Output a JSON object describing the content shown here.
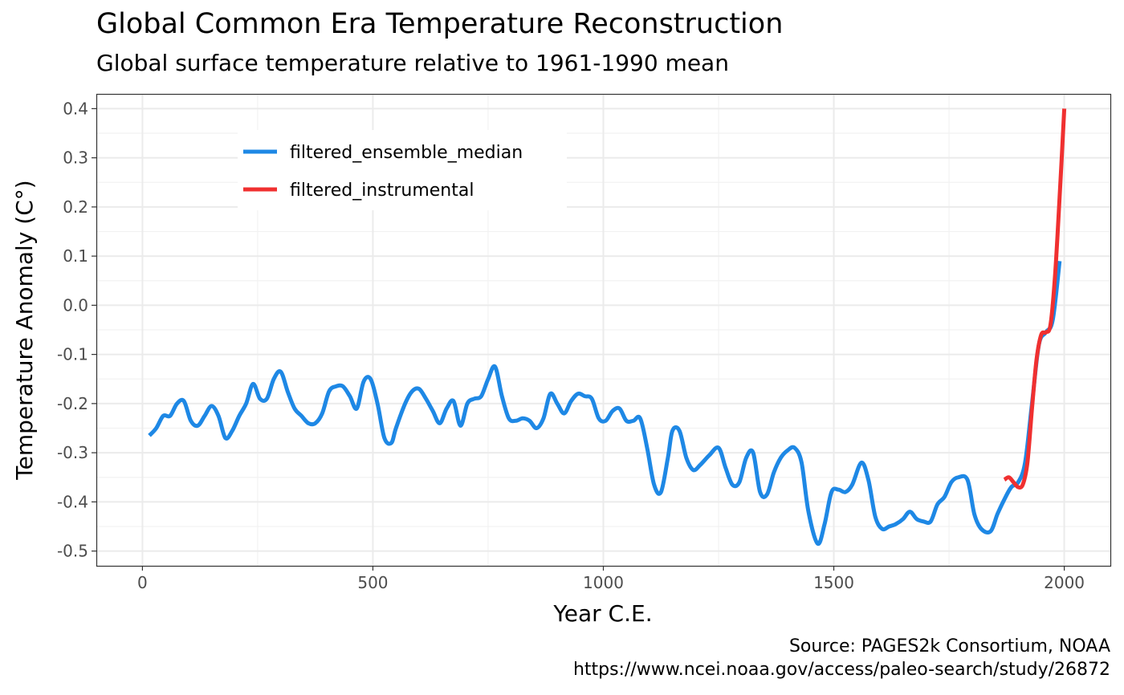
{
  "chart_data": {
    "type": "line",
    "title": "Global Common Era Temperature Reconstruction",
    "subtitle": "Global surface temperature relative to 1961-1990 mean",
    "xlabel": "Year C.E.",
    "ylabel": "Temperature Anomaly (C°)",
    "caption_line1": "Source: PAGES2k Consortium, NOAA",
    "caption_line2": "https://www.ncei.noaa.gov/access/paleo-search/study/26872",
    "xlim": [
      -100,
      2100
    ],
    "ylim": [
      -0.53,
      0.43
    ],
    "x_ticks": [
      0,
      500,
      1000,
      1500,
      2000
    ],
    "y_ticks": [
      0.4,
      0.3,
      0.2,
      0.1,
      0.0,
      -0.1,
      -0.2,
      -0.3,
      -0.4,
      -0.5
    ],
    "x_tick_labels": [
      "0",
      "500",
      "1000",
      "1500",
      "2000"
    ],
    "y_tick_labels": [
      "0.4",
      "0.3",
      "0.2",
      "0.1",
      "0.0",
      "-0.1",
      "-0.2",
      "-0.3",
      "-0.4",
      "-0.5"
    ],
    "grid": true,
    "legend_position": "top-left",
    "series": [
      {
        "name": "filtered_ensemble_median",
        "color": "#1e88e5",
        "x": [
          15,
          30,
          45,
          60,
          75,
          90,
          105,
          120,
          135,
          150,
          165,
          180,
          195,
          210,
          225,
          240,
          255,
          270,
          285,
          300,
          315,
          330,
          345,
          360,
          375,
          390,
          405,
          420,
          435,
          450,
          465,
          480,
          495,
          510,
          525,
          540,
          550,
          570,
          585,
          600,
          615,
          630,
          645,
          660,
          675,
          690,
          705,
          720,
          735,
          750,
          765,
          780,
          795,
          810,
          825,
          840,
          855,
          870,
          885,
          900,
          915,
          930,
          945,
          960,
          975,
          990,
          1005,
          1020,
          1035,
          1050,
          1065,
          1080,
          1095,
          1110,
          1125,
          1140,
          1150,
          1165,
          1180,
          1195,
          1210,
          1230,
          1250,
          1265,
          1280,
          1295,
          1310,
          1325,
          1340,
          1355,
          1370,
          1385,
          1400,
          1415,
          1430,
          1445,
          1465,
          1480,
          1495,
          1510,
          1525,
          1540,
          1560,
          1575,
          1590,
          1605,
          1620,
          1635,
          1650,
          1665,
          1680,
          1695,
          1710,
          1725,
          1740,
          1755,
          1770,
          1790,
          1805,
          1820,
          1840,
          1855,
          1870,
          1885,
          1900,
          1915,
          1930,
          1945,
          1960,
          1975,
          1990
        ],
        "y": [
          -0.265,
          -0.25,
          -0.225,
          -0.225,
          -0.2,
          -0.195,
          -0.235,
          -0.245,
          -0.225,
          -0.205,
          -0.225,
          -0.27,
          -0.255,
          -0.225,
          -0.2,
          -0.16,
          -0.19,
          -0.19,
          -0.15,
          -0.135,
          -0.175,
          -0.21,
          -0.225,
          -0.24,
          -0.24,
          -0.22,
          -0.175,
          -0.165,
          -0.165,
          -0.185,
          -0.21,
          -0.155,
          -0.15,
          -0.2,
          -0.27,
          -0.28,
          -0.25,
          -0.2,
          -0.175,
          -0.17,
          -0.19,
          -0.215,
          -0.24,
          -0.21,
          -0.195,
          -0.245,
          -0.2,
          -0.19,
          -0.185,
          -0.15,
          -0.125,
          -0.185,
          -0.23,
          -0.235,
          -0.23,
          -0.235,
          -0.25,
          -0.23,
          -0.18,
          -0.2,
          -0.22,
          -0.195,
          -0.18,
          -0.185,
          -0.19,
          -0.23,
          -0.235,
          -0.215,
          -0.21,
          -0.235,
          -0.235,
          -0.23,
          -0.29,
          -0.365,
          -0.38,
          -0.31,
          -0.255,
          -0.255,
          -0.31,
          -0.335,
          -0.325,
          -0.305,
          -0.29,
          -0.33,
          -0.365,
          -0.36,
          -0.31,
          -0.3,
          -0.38,
          -0.385,
          -0.34,
          -0.31,
          -0.295,
          -0.29,
          -0.32,
          -0.42,
          -0.485,
          -0.445,
          -0.38,
          -0.375,
          -0.38,
          -0.365,
          -0.32,
          -0.355,
          -0.43,
          -0.455,
          -0.45,
          -0.445,
          -0.435,
          -0.42,
          -0.435,
          -0.44,
          -0.44,
          -0.405,
          -0.39,
          -0.36,
          -0.35,
          -0.355,
          -0.425,
          -0.455,
          -0.46,
          -0.425,
          -0.395,
          -0.37,
          -0.36,
          -0.32,
          -0.2,
          -0.08,
          -0.055,
          -0.03,
          0.09
        ]
      },
      {
        "name": "filtered_instrumental",
        "color": "#f03030",
        "x": [
          1870,
          1880,
          1890,
          1900,
          1910,
          1920,
          1930,
          1940,
          1950,
          1960,
          1970,
          1980,
          1990,
          2000
        ],
        "y": [
          -0.355,
          -0.35,
          -0.36,
          -0.37,
          -0.365,
          -0.32,
          -0.21,
          -0.11,
          -0.06,
          -0.055,
          -0.04,
          0.06,
          0.22,
          0.4
        ]
      }
    ]
  }
}
